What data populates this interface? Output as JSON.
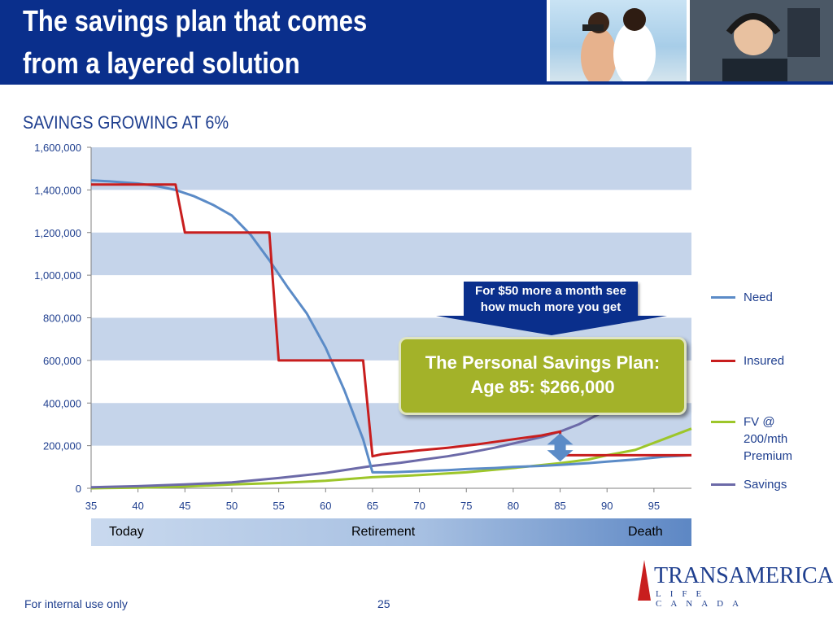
{
  "slide": {
    "title": "The savings plan that comes\nfrom a layered solution",
    "subtitle": "SAVINGS GROWING AT 6%",
    "footer_left": "For internal use only",
    "page_number": "25"
  },
  "logo": {
    "name": "TRANSAMERICA",
    "sub": "LIFE CANADA"
  },
  "timeline": {
    "left": "Today",
    "middle": "Retirement",
    "right": "Death"
  },
  "callouts": {
    "top": "For $50 more a month see how much more you get",
    "main_line1": "The Personal Savings Plan:",
    "main_line2": "Age 85: $266,000"
  },
  "colors": {
    "need": "#5b8bc7",
    "insured": "#c81e1e",
    "fv": "#9dc62a",
    "savings": "#6c6aa8",
    "band": "#c5d4ea",
    "header": "#0a2f8c"
  },
  "chart_data": {
    "type": "line",
    "title": "SAVINGS GROWING AT 6%",
    "xlabel": "",
    "ylabel": "",
    "xlim": [
      35,
      99
    ],
    "ylim": [
      0,
      1600000
    ],
    "x_ticks": [
      "35",
      "40",
      "45",
      "50",
      "55",
      "60",
      "65",
      "70",
      "75",
      "80",
      "85",
      "90",
      "95"
    ],
    "y_ticks": [
      "0",
      "200,000",
      "400,000",
      "600,000",
      "800,000",
      "1,000,000",
      "1,200,000",
      "1,400,000",
      "1,600,000"
    ],
    "grid": "alternating horizontal bands",
    "legend_position": "right",
    "series": [
      {
        "name": "Need",
        "points": [
          [
            35,
            1445000
          ],
          [
            37,
            1440000
          ],
          [
            40,
            1430000
          ],
          [
            42,
            1418000
          ],
          [
            44,
            1400000
          ],
          [
            46,
            1370000
          ],
          [
            48,
            1330000
          ],
          [
            50,
            1280000
          ],
          [
            52,
            1190000
          ],
          [
            54,
            1070000
          ],
          [
            56,
            940000
          ],
          [
            58,
            820000
          ],
          [
            60,
            660000
          ],
          [
            62,
            460000
          ],
          [
            64,
            230000
          ],
          [
            65,
            75000
          ],
          [
            67,
            75000
          ],
          [
            70,
            80000
          ],
          [
            73,
            85000
          ],
          [
            75,
            90000
          ],
          [
            78,
            95000
          ],
          [
            80,
            100000
          ],
          [
            83,
            105000
          ],
          [
            85,
            110000
          ],
          [
            88,
            118000
          ],
          [
            90,
            125000
          ],
          [
            93,
            135000
          ],
          [
            96,
            148000
          ],
          [
            99,
            155000
          ]
        ]
      },
      {
        "name": "Insured",
        "points": [
          [
            35,
            1425000
          ],
          [
            44,
            1425000
          ],
          [
            45,
            1200000
          ],
          [
            54,
            1200000
          ],
          [
            55,
            600000
          ],
          [
            64,
            600000
          ],
          [
            65,
            150000
          ],
          [
            66,
            160000
          ],
          [
            70,
            178000
          ],
          [
            73,
            190000
          ],
          [
            76,
            205000
          ],
          [
            80,
            230000
          ],
          [
            83,
            248000
          ],
          [
            85,
            266000
          ],
          [
            85.01,
            155000
          ],
          [
            99,
            155000
          ]
        ]
      },
      {
        "name": "FV @ 200/mth Premium",
        "points": [
          [
            35,
            0
          ],
          [
            40,
            3000
          ],
          [
            45,
            8000
          ],
          [
            50,
            18000
          ],
          [
            55,
            25000
          ],
          [
            60,
            35000
          ],
          [
            65,
            52000
          ],
          [
            70,
            62000
          ],
          [
            75,
            75000
          ],
          [
            80,
            95000
          ],
          [
            85,
            118000
          ],
          [
            88,
            135000
          ],
          [
            90,
            155000
          ],
          [
            93,
            180000
          ],
          [
            96,
            230000
          ],
          [
            99,
            280000
          ]
        ]
      },
      {
        "name": "Savings",
        "points": [
          [
            35,
            5000
          ],
          [
            40,
            10000
          ],
          [
            45,
            18000
          ],
          [
            50,
            28000
          ],
          [
            55,
            48000
          ],
          [
            60,
            72000
          ],
          [
            65,
            105000
          ],
          [
            68,
            120000
          ],
          [
            70,
            132000
          ],
          [
            73,
            150000
          ],
          [
            75,
            165000
          ],
          [
            78,
            190000
          ],
          [
            80,
            210000
          ],
          [
            83,
            240000
          ],
          [
            85,
            266000
          ],
          [
            87,
            300000
          ],
          [
            89,
            345000
          ],
          [
            90,
            370000
          ]
        ]
      }
    ],
    "annotation": "double-headed arrow at age 85 between FV and Insured"
  }
}
